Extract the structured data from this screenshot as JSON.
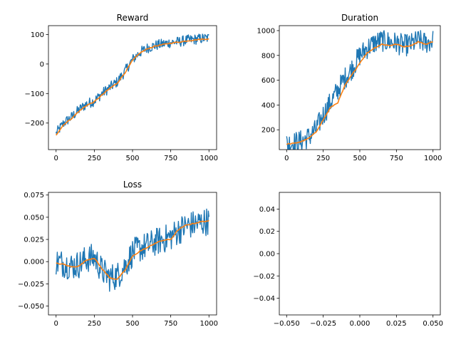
{
  "figure": {
    "background": "#ffffff"
  },
  "colors": {
    "raw": "#1f77b4",
    "smooth": "#ff7f0e",
    "axes": "#000000"
  },
  "chart_data": [
    {
      "type": "line",
      "title": "Reward",
      "xlabel": "",
      "ylabel": "",
      "xlim": [
        -50,
        1050
      ],
      "ylim": [
        -290,
        130
      ],
      "xticks": [
        0,
        250,
        500,
        750,
        1000
      ],
      "xticklabels": [
        "0",
        "250",
        "500",
        "750",
        "1000"
      ],
      "yticks": [
        -200,
        -100,
        0,
        100
      ],
      "yticklabels": [
        "−200",
        "−100",
        "0",
        "100"
      ],
      "grid": false,
      "series": [
        {
          "role": "raw",
          "x": [
            0,
            50,
            100,
            150,
            200,
            250,
            300,
            350,
            400,
            450,
            500,
            550,
            600,
            650,
            700,
            750,
            800,
            850,
            900,
            950,
            1000
          ],
          "y": [
            -235,
            -200,
            -180,
            -155,
            -135,
            -125,
            -100,
            -80,
            -60,
            -25,
            15,
            40,
            55,
            63,
            68,
            73,
            75,
            80,
            83,
            86,
            88
          ],
          "noise": 18
        },
        {
          "role": "smoothed",
          "x": [
            0,
            50,
            100,
            150,
            200,
            250,
            300,
            350,
            400,
            450,
            500,
            550,
            600,
            650,
            700,
            750,
            800,
            850,
            900,
            950,
            1000
          ],
          "y": [
            -240,
            -205,
            -185,
            -160,
            -140,
            -128,
            -105,
            -83,
            -65,
            -30,
            12,
            38,
            52,
            61,
            66,
            71,
            74,
            78,
            81,
            84,
            85
          ]
        }
      ]
    },
    {
      "type": "line",
      "title": "Duration",
      "xlabel": "",
      "ylabel": "",
      "xlim": [
        -50,
        1050
      ],
      "ylim": [
        40,
        1040
      ],
      "xticks": [
        0,
        250,
        500,
        750,
        1000
      ],
      "xticklabels": [
        "0",
        "250",
        "500",
        "750",
        "1000"
      ],
      "yticks": [
        200,
        400,
        600,
        800,
        1000
      ],
      "yticklabels": [
        "200",
        "400",
        "600",
        "800",
        "1000"
      ],
      "grid": false,
      "series": [
        {
          "role": "raw",
          "x": [
            0,
            50,
            100,
            150,
            200,
            250,
            300,
            350,
            400,
            450,
            500,
            550,
            600,
            650,
            700,
            750,
            800,
            850,
            900,
            950,
            1000
          ],
          "y": [
            90,
            95,
            110,
            140,
            200,
            320,
            420,
            520,
            620,
            700,
            800,
            860,
            900,
            920,
            910,
            900,
            880,
            890,
            920,
            900,
            920
          ],
          "noise": 90
        },
        {
          "role": "smoothed",
          "x": [
            0,
            50,
            100,
            150,
            200,
            250,
            300,
            350,
            400,
            450,
            500,
            550,
            600,
            650,
            700,
            750,
            800,
            850,
            900,
            950,
            1000
          ],
          "y": [
            85,
            90,
            105,
            130,
            180,
            280,
            380,
            420,
            560,
            650,
            740,
            820,
            860,
            890,
            880,
            890,
            870,
            880,
            910,
            890,
            910
          ]
        }
      ]
    },
    {
      "type": "line",
      "title": "Loss",
      "xlabel": "",
      "ylabel": "",
      "xlim": [
        -50,
        1050
      ],
      "ylim": [
        -0.06,
        0.078
      ],
      "xticks": [
        0,
        250,
        500,
        750,
        1000
      ],
      "xticklabels": [
        "0",
        "250",
        "500",
        "750",
        "1000"
      ],
      "yticks": [
        -0.05,
        -0.025,
        0.0,
        0.025,
        0.05,
        0.075
      ],
      "yticklabels": [
        "−0.050",
        "−0.025",
        "0.000",
        "0.025",
        "0.050",
        "0.075"
      ],
      "grid": false,
      "series": [
        {
          "role": "raw",
          "x": [
            0,
            50,
            100,
            150,
            200,
            250,
            300,
            350,
            400,
            450,
            500,
            550,
            600,
            650,
            700,
            750,
            800,
            850,
            900,
            950,
            1000
          ],
          "y": [
            0.0,
            -0.002,
            -0.005,
            -0.003,
            0.003,
            0.005,
            -0.01,
            -0.018,
            -0.016,
            -0.005,
            0.01,
            0.015,
            0.018,
            0.022,
            0.025,
            0.028,
            0.035,
            0.04,
            0.042,
            0.044,
            0.046
          ],
          "noise": 0.016
        },
        {
          "role": "smoothed",
          "x": [
            0,
            50,
            100,
            150,
            200,
            250,
            300,
            350,
            400,
            450,
            500,
            550,
            600,
            650,
            700,
            750,
            800,
            850,
            900,
            950,
            1000
          ],
          "y": [
            -0.002,
            -0.003,
            -0.006,
            -0.005,
            0.002,
            0.004,
            -0.008,
            -0.018,
            -0.02,
            -0.01,
            0.006,
            0.012,
            0.016,
            0.021,
            0.024,
            0.025,
            0.036,
            0.041,
            0.043,
            0.045,
            0.046
          ]
        }
      ]
    },
    {
      "type": "line",
      "title": "",
      "xlabel": "",
      "ylabel": "",
      "xlim": [
        -0.055,
        0.055
      ],
      "ylim": [
        -0.055,
        0.055
      ],
      "xticks": [
        -0.05,
        -0.025,
        0.0,
        0.025,
        0.05
      ],
      "xticklabels": [
        "−0.050",
        "−0.025",
        "0.000",
        "0.025",
        "0.050"
      ],
      "yticks": [
        -0.04,
        -0.02,
        0.0,
        0.02,
        0.04
      ],
      "yticklabels": [
        "−0.04",
        "−0.02",
        "0.00",
        "0.02",
        "0.04"
      ],
      "grid": false,
      "series": []
    }
  ]
}
